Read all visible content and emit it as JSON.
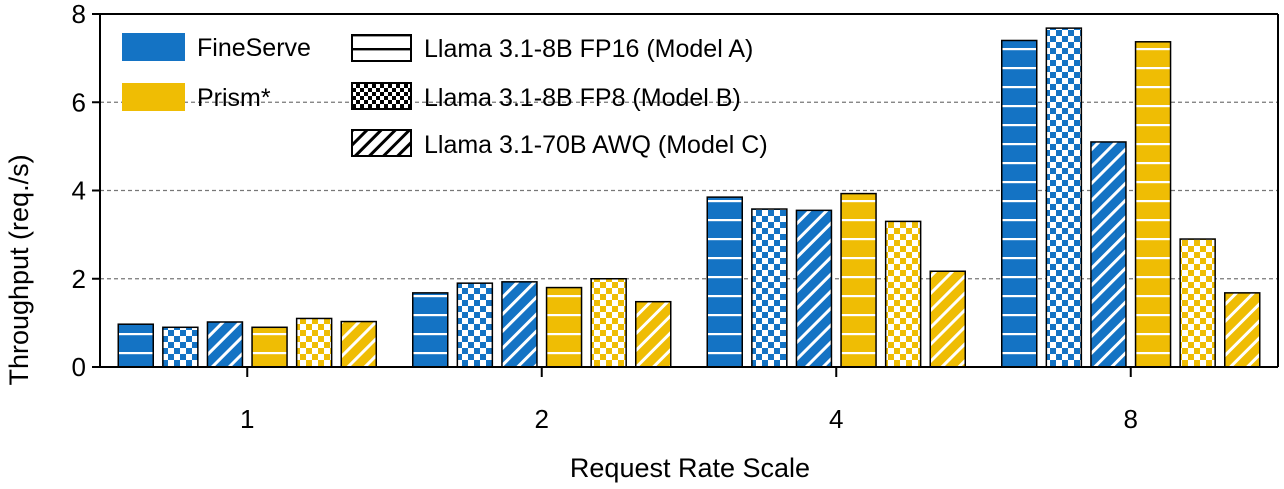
{
  "chart_data": {
    "type": "bar",
    "title": "",
    "xlabel": "Request Rate Scale",
    "ylabel": "Throughput  (req./s)",
    "categories": [
      "1",
      "2",
      "4",
      "8"
    ],
    "ylim": [
      0,
      8
    ],
    "yticks": [
      "0",
      "2",
      "4",
      "6",
      "8"
    ],
    "grid": "horizontal dashed at 2, 4, 6",
    "legend_position": "top-left",
    "systems": [
      {
        "key": "fineserve",
        "name": "FineServe",
        "color": "#1473c4"
      },
      {
        "key": "prism",
        "name": "Prism*",
        "color": "#efbd04"
      }
    ],
    "models": [
      {
        "key": "A",
        "name": "Llama 3.1-8B FP16 (Model  A)",
        "pattern": "horizontal-lines"
      },
      {
        "key": "B",
        "name": "Llama 3.1-8B FP8 (Model  B)",
        "pattern": "checker"
      },
      {
        "key": "C",
        "name": "Llama 3.1-70B AWQ (Model  C)",
        "pattern": "diagonal"
      }
    ],
    "series": [
      {
        "name": "FineServe - Model A",
        "system": "fineserve",
        "model": "A",
        "values": [
          0.97,
          1.68,
          3.85,
          7.4
        ]
      },
      {
        "name": "FineServe - Model B",
        "system": "fineserve",
        "model": "B",
        "values": [
          0.9,
          1.9,
          3.58,
          7.68
        ]
      },
      {
        "name": "FineServe - Model C",
        "system": "fineserve",
        "model": "C",
        "values": [
          1.02,
          1.93,
          3.55,
          5.1
        ]
      },
      {
        "name": "Prism* - Model A",
        "system": "prism",
        "model": "A",
        "values": [
          0.9,
          1.8,
          3.93,
          7.37
        ]
      },
      {
        "name": "Prism* - Model B",
        "system": "prism",
        "model": "B",
        "values": [
          1.1,
          2.0,
          3.3,
          2.9
        ]
      },
      {
        "name": "Prism* - Model C",
        "system": "prism",
        "model": "C",
        "values": [
          1.03,
          1.48,
          2.17,
          1.68
        ]
      }
    ]
  }
}
